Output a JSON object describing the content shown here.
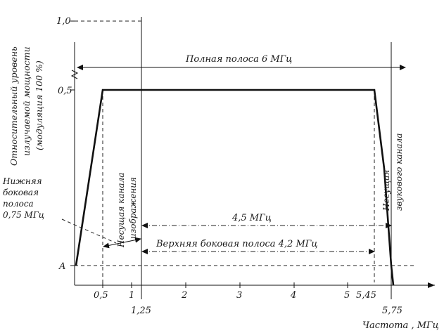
{
  "axes": {
    "y_ticks": {
      "top": "1,0",
      "mid": "0,5",
      "low": "A"
    },
    "x_ticks": [
      "0,5",
      "1",
      "2",
      "3",
      "4",
      "5",
      "5,45"
    ],
    "x_ticks_below": [
      "1,25",
      "5,75"
    ],
    "x_label": "Частота , МГц"
  },
  "y_axis_title": {
    "line1": "Относительный  уровень",
    "line2": "излучаемой  мощности",
    "line3": "(модуляция 100 %)"
  },
  "annotations": {
    "full_band": "Полная полоса  6 МГц",
    "lower_sideband": [
      "Нижняя",
      "боковая",
      "полоса",
      "0,75 МГц"
    ],
    "video_carrier": [
      "Несущая канала",
      "изображения"
    ],
    "sound_carrier": [
      "Несущая",
      "звукового канала"
    ],
    "band_45": "4,5 МГц",
    "upper_sideband": "Верхняя  боковая  полоса  4,2 МГц"
  }
}
